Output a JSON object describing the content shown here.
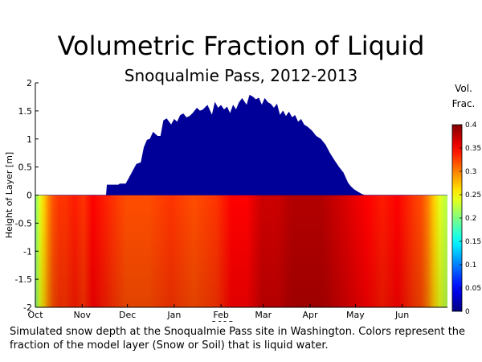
{
  "chart_data": {
    "type": "area",
    "title": "Volumetric Fraction of Liquid",
    "subtitle": "Snoqualmie Pass, 2012-2013",
    "ylabel": "Height of Layer [m]",
    "xlabel_year": "2013",
    "ylim": [
      -2,
      2
    ],
    "yticks": [
      "2",
      "1.5",
      "1",
      "0.5",
      "0",
      "-0.5",
      "-1",
      "-1.5",
      "-2"
    ],
    "ytick_values": [
      2,
      1.5,
      1,
      0.5,
      0,
      -0.5,
      -1,
      -1.5,
      -2
    ],
    "months": [
      "Oct",
      "Nov",
      "Dec",
      "Jan",
      "Feb",
      "Mar",
      "Apr",
      "May",
      "Jun"
    ],
    "xlim_days": [
      0,
      273
    ],
    "month_start_days": [
      0,
      31,
      61,
      92,
      123,
      151,
      182,
      212,
      243
    ],
    "snow_depth": {
      "x_days": [
        0,
        47,
        47.5,
        55,
        56,
        60,
        66,
        67,
        70,
        72,
        74,
        76,
        78,
        81,
        83,
        85,
        87,
        90,
        92,
        94,
        96,
        98,
        100,
        102,
        104,
        107,
        109,
        111,
        114,
        117,
        119,
        121,
        123,
        125,
        127,
        129,
        131,
        133,
        135,
        137,
        140,
        142,
        144,
        146,
        148,
        150,
        152,
        154,
        156,
        158,
        160,
        162,
        164,
        166,
        168,
        170,
        172,
        174,
        176,
        178,
        180,
        183,
        186,
        189,
        192,
        195,
        198,
        201,
        204,
        207,
        209,
        211,
        214,
        216,
        218,
        220,
        273
      ],
      "depth_m": [
        0,
        0,
        0.18,
        0.18,
        0.2,
        0.2,
        0.5,
        0.55,
        0.58,
        0.85,
        0.98,
        1.0,
        1.12,
        1.05,
        1.05,
        1.33,
        1.36,
        1.25,
        1.35,
        1.3,
        1.42,
        1.45,
        1.38,
        1.4,
        1.45,
        1.55,
        1.5,
        1.52,
        1.6,
        1.42,
        1.65,
        1.55,
        1.6,
        1.52,
        1.57,
        1.45,
        1.6,
        1.52,
        1.65,
        1.72,
        1.6,
        1.78,
        1.75,
        1.7,
        1.73,
        1.6,
        1.72,
        1.65,
        1.62,
        1.55,
        1.62,
        1.42,
        1.5,
        1.4,
        1.48,
        1.38,
        1.42,
        1.3,
        1.35,
        1.25,
        1.22,
        1.15,
        1.05,
        1.0,
        0.9,
        0.75,
        0.62,
        0.5,
        0.4,
        0.22,
        0.15,
        0.1,
        0.05,
        0.02,
        0.0,
        0,
        0
      ]
    },
    "snow_fraction": 0.01,
    "soil_fraction": {
      "x_days": [
        0,
        3,
        6,
        9,
        12,
        16,
        20,
        26,
        32,
        38,
        45,
        52,
        60,
        75,
        90,
        105,
        120,
        130,
        140,
        150,
        160,
        170,
        180,
        190,
        200,
        210,
        220,
        230,
        240,
        250,
        256,
        260,
        264,
        268,
        273
      ],
      "value": [
        0.2,
        0.24,
        0.27,
        0.3,
        0.32,
        0.33,
        0.33,
        0.34,
        0.33,
        0.35,
        0.34,
        0.33,
        0.32,
        0.32,
        0.33,
        0.32,
        0.33,
        0.35,
        0.35,
        0.37,
        0.37,
        0.38,
        0.38,
        0.38,
        0.37,
        0.36,
        0.35,
        0.34,
        0.35,
        0.33,
        0.32,
        0.3,
        0.27,
        0.24,
        0.22
      ]
    },
    "colorbar": {
      "title_line1": "Vol.",
      "title_line2": "Frac.",
      "range": [
        0,
        0.4
      ],
      "ticks": [
        "0.4",
        "0.35",
        "0.3",
        "0.25",
        "0.2",
        "0.15",
        "0.1",
        "0.05",
        "0"
      ],
      "tick_values": [
        0.4,
        0.35,
        0.3,
        0.25,
        0.2,
        0.15,
        0.1,
        0.05,
        0
      ]
    }
  },
  "caption": "Simulated snow depth at the Snoqualmie Pass site in Washington. Colors represent the fraction of the model layer (Snow or Soil) that is liquid water."
}
